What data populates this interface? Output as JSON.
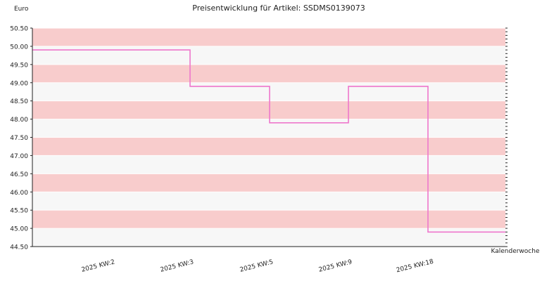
{
  "chart_data": {
    "type": "line",
    "step": true,
    "title": "Preisentwicklung für Artikel: SSDMS0139073",
    "ylabel": "Euro",
    "xlabel": "Kalenderwoche",
    "ylim": [
      44.5,
      50.5
    ],
    "y_ticks": [
      "44.50",
      "45.00",
      "45.50",
      "46.00",
      "46.50",
      "47.00",
      "47.50",
      "48.00",
      "48.50",
      "49.00",
      "49.50",
      "50.00",
      "50.50"
    ],
    "categories": [
      "2025 KW:2",
      "2025 KW:3",
      "2025 KW:5",
      "2025 KW:9",
      "2025 KW:18"
    ],
    "series": [
      {
        "values": [
          49.9,
          48.9,
          47.9,
          48.9,
          44.9
        ]
      }
    ],
    "grid": true,
    "colors": {
      "line": "#ee77cc",
      "band_a": "#f8cccc",
      "band_b": "#f7f7f7",
      "gridline": "#ffffff",
      "axis": "#222222"
    }
  }
}
